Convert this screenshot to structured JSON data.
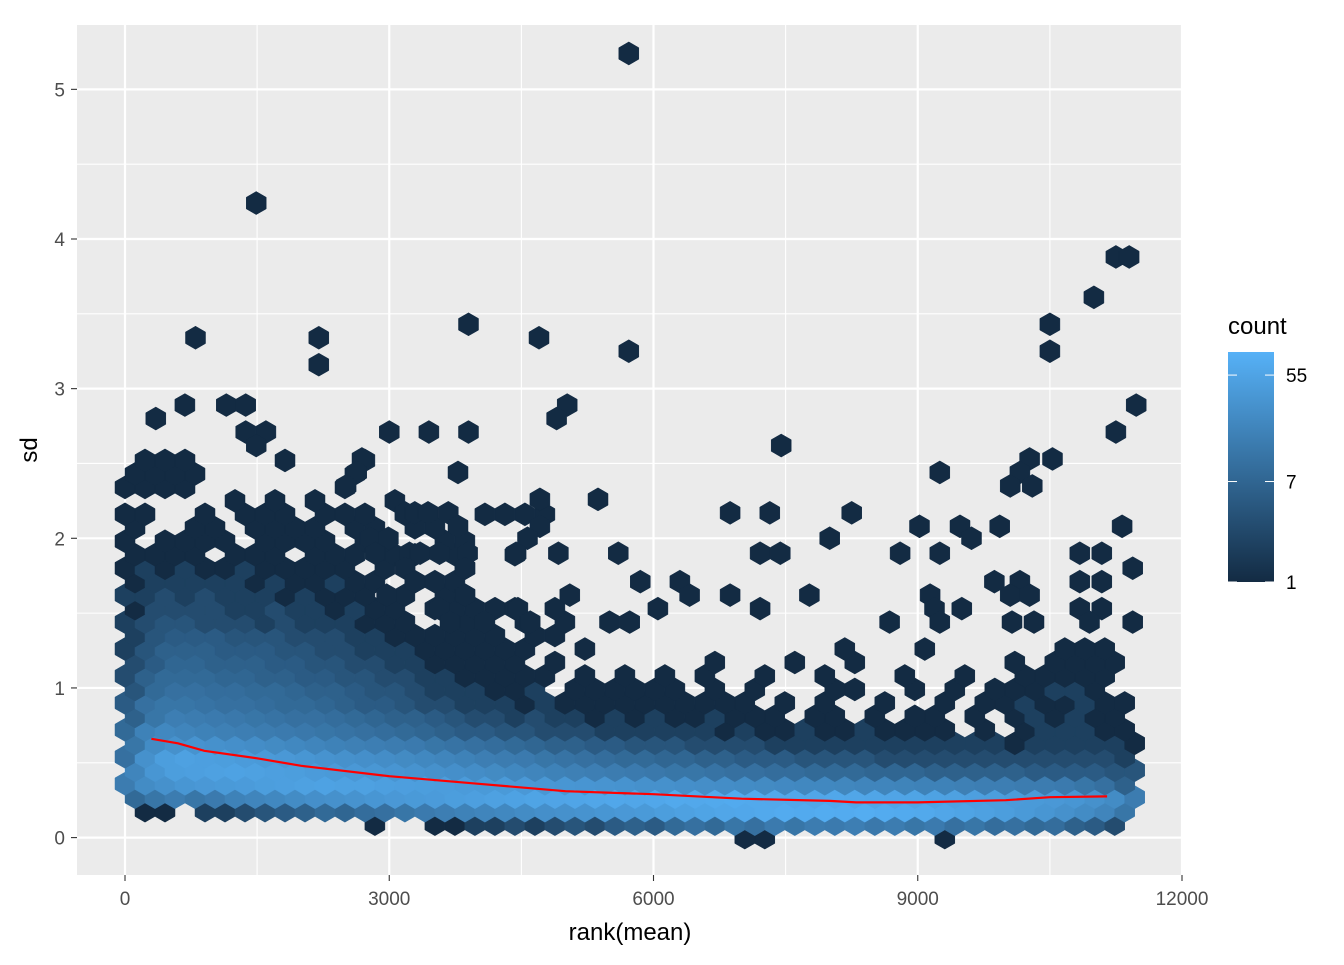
{
  "chart_data": {
    "type": "heatmap",
    "subtype": "hexbin",
    "xlabel": "rank(mean)",
    "ylabel": "sd",
    "xlim": [
      -545,
      12000
    ],
    "ylim": [
      -0.25,
      5.43
    ],
    "x_ticks": [
      0,
      3000,
      6000,
      9000,
      12000
    ],
    "x_tick_labels": [
      "0",
      "3000",
      "6000",
      "9000",
      "12000"
    ],
    "y_ticks": [
      0,
      1,
      2,
      3,
      4,
      5
    ],
    "y_tick_labels": [
      "0",
      "1",
      "2",
      "3",
      "4",
      "5"
    ],
    "grid": true,
    "hex_x_spacing": 227,
    "hex_y_spacing": 0.09,
    "dense_rows": [
      [
        0,
        0,
        0,
        0,
        0,
        0,
        0,
        0,
        0,
        0,
        0,
        0,
        0,
        0,
        0,
        0,
        0,
        0,
        0,
        0,
        0,
        0,
        0,
        0,
        0,
        0,
        0,
        0,
        0,
        0,
        0,
        1,
        1,
        0,
        0,
        0,
        0,
        0,
        0,
        0,
        0,
        1
      ],
      [
        0,
        0,
        0,
        0,
        0,
        0,
        0,
        0,
        0,
        0,
        0,
        0,
        1,
        0,
        0,
        1,
        1,
        2,
        2,
        3,
        2,
        3,
        4,
        3,
        5,
        6,
        5,
        8,
        10,
        8,
        12,
        10,
        14,
        12,
        15,
        14,
        16,
        13,
        15,
        12,
        14,
        10,
        12,
        9,
        10,
        8,
        9,
        6,
        5,
        3,
        0
      ],
      [
        0,
        1,
        1,
        0,
        2,
        2,
        3,
        4,
        5,
        6,
        8,
        7,
        9,
        10,
        12,
        14,
        16,
        18,
        20,
        22,
        25,
        28,
        30,
        32,
        35,
        38,
        40,
        45,
        50,
        55,
        60,
        62,
        65,
        70,
        68,
        72,
        70,
        75,
        70,
        68,
        65,
        60,
        55,
        50,
        45,
        40,
        35,
        30,
        25,
        20,
        12
      ],
      [
        8,
        12,
        15,
        12,
        14,
        18,
        20,
        22,
        25,
        28,
        30,
        32,
        35,
        38,
        40,
        42,
        45,
        48,
        50,
        52,
        55,
        56,
        58,
        60,
        62,
        60,
        62,
        65,
        64,
        66,
        68,
        66,
        64,
        62,
        60,
        62,
        60,
        58,
        56,
        55,
        52,
        50,
        48,
        45,
        42,
        40,
        38,
        35,
        30,
        25,
        15
      ],
      [
        15,
        25,
        30,
        35,
        38,
        40,
        42,
        45,
        48,
        50,
        52,
        50,
        50,
        48,
        46,
        45,
        44,
        42,
        40,
        40,
        38,
        36,
        35,
        34,
        33,
        32,
        30,
        30,
        28,
        27,
        26,
        25,
        24,
        23,
        22,
        22,
        21,
        20,
        20,
        19,
        18,
        18,
        17,
        16,
        16,
        15,
        15,
        14,
        12,
        10,
        6
      ],
      [
        20,
        35,
        45,
        48,
        50,
        52,
        50,
        48,
        45,
        42,
        40,
        38,
        36,
        34,
        32,
        30,
        28,
        26,
        24,
        22,
        20,
        18,
        17,
        16,
        15,
        14,
        13,
        12,
        12,
        11,
        10,
        10,
        9,
        9,
        8,
        8,
        8,
        7,
        7,
        7,
        6,
        6,
        6,
        6,
        6,
        5,
        5,
        5,
        5,
        4,
        4
      ],
      [
        10,
        30,
        45,
        50,
        48,
        45,
        42,
        40,
        38,
        35,
        32,
        30,
        28,
        26,
        24,
        22,
        20,
        18,
        16,
        15,
        14,
        12,
        11,
        10,
        9,
        8,
        8,
        7,
        7,
        6,
        6,
        5,
        5,
        5,
        4,
        4,
        4,
        4,
        3,
        3,
        3,
        3,
        3,
        3,
        3,
        3,
        3,
        3,
        3,
        3,
        2
      ],
      [
        12,
        25,
        30,
        32,
        30,
        28,
        26,
        24,
        22,
        20,
        18,
        17,
        16,
        15,
        14,
        12,
        11,
        10,
        9,
        8,
        7,
        6,
        6,
        5,
        5,
        4,
        4,
        4,
        3,
        3,
        3,
        3,
        2,
        2,
        2,
        2,
        2,
        2,
        2,
        2,
        2,
        2,
        2,
        2,
        1,
        2,
        2,
        2,
        2,
        2,
        1
      ],
      [
        8,
        18,
        22,
        20,
        18,
        17,
        16,
        15,
        14,
        13,
        12,
        11,
        10,
        9,
        8,
        7,
        6,
        5,
        5,
        4,
        4,
        3,
        3,
        3,
        2,
        2,
        2,
        2,
        2,
        2,
        1,
        2,
        1,
        1,
        2,
        1,
        1,
        2,
        1,
        1,
        1,
        1,
        0,
        1,
        0,
        1,
        2,
        2,
        2,
        1,
        1
      ],
      [
        6,
        12,
        16,
        15,
        14,
        13,
        12,
        11,
        10,
        10,
        9,
        8,
        7,
        6,
        6,
        5,
        4,
        3,
        3,
        2,
        3,
        2,
        2,
        1,
        2,
        1,
        2,
        1,
        1,
        2,
        1,
        1,
        1,
        0,
        1,
        1,
        0,
        1,
        0,
        1,
        1,
        0,
        1,
        0,
        1,
        2,
        1,
        2,
        1,
        1,
        0
      ],
      [
        5,
        10,
        12,
        12,
        11,
        10,
        10,
        9,
        8,
        8,
        7,
        6,
        5,
        5,
        4,
        3,
        3,
        2,
        2,
        2,
        1,
        2,
        1,
        1,
        1,
        1,
        1,
        1,
        1,
        1,
        1,
        1,
        0,
        1,
        0,
        1,
        0,
        0,
        1,
        0,
        0,
        1,
        0,
        1,
        1,
        2,
        1,
        1,
        2,
        1,
        1
      ],
      [
        4,
        8,
        10,
        10,
        9,
        9,
        8,
        8,
        7,
        6,
        6,
        5,
        4,
        4,
        3,
        2,
        2,
        2,
        1,
        1,
        2,
        0,
        1,
        1,
        1,
        1,
        1,
        1,
        0,
        1,
        0,
        1,
        0,
        0,
        0,
        1,
        1,
        0,
        0,
        1,
        0,
        1,
        0,
        1,
        1,
        1,
        2,
        2,
        1,
        0,
        0
      ],
      [
        3,
        6,
        8,
        8,
        8,
        7,
        7,
        6,
        6,
        5,
        5,
        4,
        4,
        3,
        3,
        2,
        2,
        1,
        1,
        1,
        1,
        1,
        0,
        1,
        0,
        1,
        0,
        1,
        0,
        1,
        0,
        0,
        1,
        0,
        0,
        1,
        0,
        0,
        0,
        1,
        0,
        0,
        1,
        0,
        0,
        1,
        1,
        1,
        1,
        1,
        0
      ],
      [
        3,
        5,
        7,
        7,
        6,
        6,
        6,
        5,
        5,
        4,
        4,
        3,
        3,
        2,
        2,
        1,
        1,
        1,
        1,
        1,
        0,
        1,
        0,
        0,
        0,
        0,
        0,
        0,
        0,
        1,
        0,
        0,
        0,
        1,
        0,
        0,
        1,
        0,
        0,
        0,
        0,
        0,
        0,
        0,
        1,
        0,
        1,
        1,
        1,
        1,
        0
      ],
      [
        2,
        4,
        6,
        6,
        6,
        5,
        5,
        5,
        4,
        4,
        3,
        3,
        2,
        2,
        2,
        1,
        1,
        1,
        1,
        1,
        1,
        0,
        0,
        1,
        0,
        0,
        0,
        0,
        0,
        0,
        0,
        0,
        0,
        0,
        0,
        0,
        1,
        0,
        0,
        0,
        1,
        0,
        0,
        0,
        0,
        0,
        0,
        1,
        1,
        1,
        0
      ],
      [
        2,
        4,
        5,
        5,
        5,
        4,
        4,
        4,
        3,
        3,
        3,
        2,
        2,
        1,
        1,
        1,
        1,
        1,
        1,
        0,
        1,
        1
      ],
      [
        2,
        3,
        4,
        4,
        3,
        3,
        3,
        2,
        3,
        2,
        2,
        2,
        1,
        1,
        1,
        0,
        0,
        1,
        1,
        0,
        1,
        0,
        1
      ],
      [
        1,
        3,
        3,
        3,
        3,
        2,
        2,
        3,
        2,
        2,
        1,
        2,
        1,
        1,
        0,
        1,
        1,
        1,
        0,
        1,
        0,
        1
      ],
      [
        2,
        2,
        3,
        2,
        3,
        2,
        2,
        2,
        1,
        2,
        1,
        1,
        1,
        0,
        1,
        0,
        1,
        1
      ],
      [
        1,
        2,
        2,
        2,
        2,
        2,
        1,
        2,
        1,
        1,
        2,
        1,
        1,
        0,
        1,
        1,
        1,
        0
      ],
      [
        1,
        2,
        1,
        2,
        1,
        1,
        2,
        1,
        1,
        1,
        1,
        1,
        0,
        1,
        0,
        0,
        0,
        1
      ],
      [
        1,
        1,
        1,
        1,
        0,
        1,
        1,
        1,
        0,
        1,
        1,
        1,
        0,
        1,
        1,
        0,
        1,
        0,
        0,
        1
      ],
      [
        1,
        0,
        1,
        1,
        1,
        1,
        0,
        1,
        1,
        1,
        1,
        0,
        1,
        1,
        0,
        0,
        1,
        1
      ],
      [
        1,
        0,
        0,
        1,
        1,
        0,
        1,
        1,
        1,
        1,
        0,
        1,
        1,
        0,
        1,
        1
      ],
      [
        1,
        1,
        0,
        0,
        1,
        0,
        1,
        1,
        1,
        0,
        1,
        1,
        1,
        0,
        1,
        0,
        0,
        0,
        1,
        1,
        1,
        1
      ],
      [
        0,
        0,
        0,
        0,
        0,
        1,
        0,
        1,
        0,
        1,
        0,
        0,
        0,
        1
      ],
      [
        1,
        1,
        1,
        1,
        0,
        0,
        0,
        0,
        0,
        0,
        0,
        1
      ],
      [
        1,
        1,
        1,
        1,
        0,
        0,
        0,
        0,
        0,
        0,
        0,
        1
      ],
      [
        0,
        1,
        1,
        1,
        0,
        0,
        0,
        0,
        1,
        0,
        0,
        0,
        1
      ]
    ],
    "sparse_bins": [
      [
        5720,
        5.24,
        1
      ],
      [
        1490,
        4.24,
        1
      ],
      [
        11250,
        3.88,
        1
      ],
      [
        11400,
        3.88,
        1
      ],
      [
        11000,
        3.61,
        1
      ],
      [
        10500,
        3.43,
        1
      ],
      [
        10500,
        3.25,
        1
      ],
      [
        800,
        3.34,
        1
      ],
      [
        2200,
        3.34,
        1
      ],
      [
        2200,
        3.16,
        1
      ],
      [
        3900,
        3.43,
        1
      ],
      [
        4700,
        3.34,
        1
      ],
      [
        5720,
        3.25,
        1
      ],
      [
        680,
        2.89,
        1
      ],
      [
        1150,
        2.89,
        1
      ],
      [
        1370,
        2.89,
        1
      ],
      [
        5020,
        2.89,
        1
      ],
      [
        4900,
        2.8,
        1
      ],
      [
        350,
        2.8,
        1
      ],
      [
        11480,
        2.89,
        1
      ],
      [
        1370,
        2.71,
        1
      ],
      [
        1600,
        2.71,
        1
      ],
      [
        1490,
        2.62,
        1
      ],
      [
        3000,
        2.71,
        1
      ],
      [
        3450,
        2.71,
        1
      ],
      [
        3900,
        2.71,
        1
      ],
      [
        7450,
        2.62,
        1
      ],
      [
        11250,
        2.71,
        1
      ],
      [
        2690,
        2.53,
        1
      ],
      [
        10270,
        2.53,
        1
      ],
      [
        10530,
        2.53,
        1
      ],
      [
        2630,
        2.44,
        1
      ],
      [
        3780,
        2.44,
        1
      ],
      [
        10160,
        2.44,
        1
      ],
      [
        9250,
        2.44,
        1
      ],
      [
        2510,
        2.35,
        1
      ],
      [
        10050,
        2.35,
        1
      ],
      [
        10300,
        2.35,
        1
      ],
      [
        4710,
        2.26,
        1
      ],
      [
        5370,
        2.26,
        1
      ],
      [
        3180,
        2.17,
        1
      ],
      [
        3290,
        2.17,
        1
      ],
      [
        3440,
        2.17,
        1
      ],
      [
        3670,
        2.17,
        1
      ],
      [
        6870,
        2.17,
        1
      ],
      [
        7320,
        2.17,
        1
      ],
      [
        8250,
        2.17,
        1
      ],
      [
        3780,
        2.08,
        1
      ],
      [
        4710,
        2.08,
        1
      ],
      [
        9020,
        2.08,
        1
      ],
      [
        9480,
        2.08,
        1
      ],
      [
        9930,
        2.08,
        1
      ],
      [
        11320,
        2.08,
        1
      ],
      [
        2780,
        2.0,
        1
      ],
      [
        2990,
        2.0,
        1
      ],
      [
        4570,
        2.0,
        1
      ],
      [
        8000,
        2.0,
        1
      ],
      [
        9610,
        2.0,
        1
      ],
      [
        2840,
        1.9,
        1
      ],
      [
        3230,
        1.9,
        1
      ],
      [
        3350,
        1.9,
        1
      ],
      [
        3570,
        1.9,
        1
      ],
      [
        3890,
        1.9,
        1
      ],
      [
        4440,
        1.9,
        1
      ],
      [
        4920,
        1.9,
        1
      ],
      [
        5600,
        1.9,
        1
      ],
      [
        7210,
        1.9,
        1
      ],
      [
        7440,
        1.9,
        1
      ],
      [
        8800,
        1.9,
        1
      ],
      [
        9250,
        1.9,
        1
      ],
      [
        10840,
        1.9,
        1
      ],
      [
        11090,
        1.9,
        1
      ],
      [
        3180,
        1.8,
        1
      ],
      [
        3860,
        1.8,
        1
      ],
      [
        11440,
        1.8,
        1
      ],
      [
        3290,
        1.71,
        1
      ],
      [
        5850,
        1.71,
        1
      ],
      [
        6300,
        1.71,
        1
      ],
      [
        9870,
        1.71,
        1
      ],
      [
        10160,
        1.71,
        1
      ],
      [
        10840,
        1.71,
        1
      ],
      [
        11090,
        1.71,
        1
      ],
      [
        2970,
        1.62,
        1
      ],
      [
        3860,
        1.62,
        1
      ],
      [
        5050,
        1.62,
        1
      ],
      [
        6410,
        1.62,
        1
      ],
      [
        6870,
        1.62,
        1
      ],
      [
        7770,
        1.62,
        1
      ],
      [
        9140,
        1.62,
        1
      ],
      [
        10050,
        1.62,
        1
      ],
      [
        10270,
        1.62,
        1
      ],
      [
        3570,
        1.53,
        1
      ],
      [
        4200,
        1.53,
        1
      ],
      [
        4460,
        1.53,
        1
      ],
      [
        6050,
        1.53,
        1
      ],
      [
        7210,
        1.53,
        1
      ],
      [
        9190,
        1.53,
        1
      ],
      [
        9500,
        1.53,
        1
      ],
      [
        10840,
        1.53,
        1
      ],
      [
        11090,
        1.53,
        1
      ],
      [
        3690,
        1.44,
        1
      ],
      [
        4080,
        1.44,
        1
      ],
      [
        4600,
        1.44,
        1
      ],
      [
        5500,
        1.44,
        1
      ],
      [
        5730,
        1.44,
        1
      ],
      [
        8680,
        1.44,
        1
      ],
      [
        9250,
        1.44,
        1
      ],
      [
        10070,
        1.44,
        1
      ],
      [
        10320,
        1.44,
        1
      ],
      [
        11440,
        1.44,
        1
      ],
      [
        10950,
        1.44,
        1
      ]
    ],
    "smooth_line": {
      "color": "#FF0000",
      "x": [
        300,
        600,
        900,
        1500,
        2000,
        3000,
        4000,
        5000,
        6000,
        7000,
        8000,
        8300,
        9000,
        10000,
        10500,
        11150
      ],
      "y": [
        0.66,
        0.63,
        0.58,
        0.53,
        0.48,
        0.41,
        0.36,
        0.31,
        0.29,
        0.26,
        0.245,
        0.235,
        0.235,
        0.25,
        0.27,
        0.275
      ]
    },
    "legend": {
      "title": "count",
      "placement": "right",
      "scale": "log",
      "range": [
        1,
        86
      ],
      "breaks": [
        1,
        7,
        55
      ],
      "break_labels": [
        "1",
        "7",
        "55"
      ],
      "low_color": "#132B43",
      "high_color": "#56B1F7"
    },
    "colors": {
      "panel_background": "#EBEBEB",
      "grid": "#FFFFFF",
      "axis_text": "#4D4D4D"
    }
  }
}
